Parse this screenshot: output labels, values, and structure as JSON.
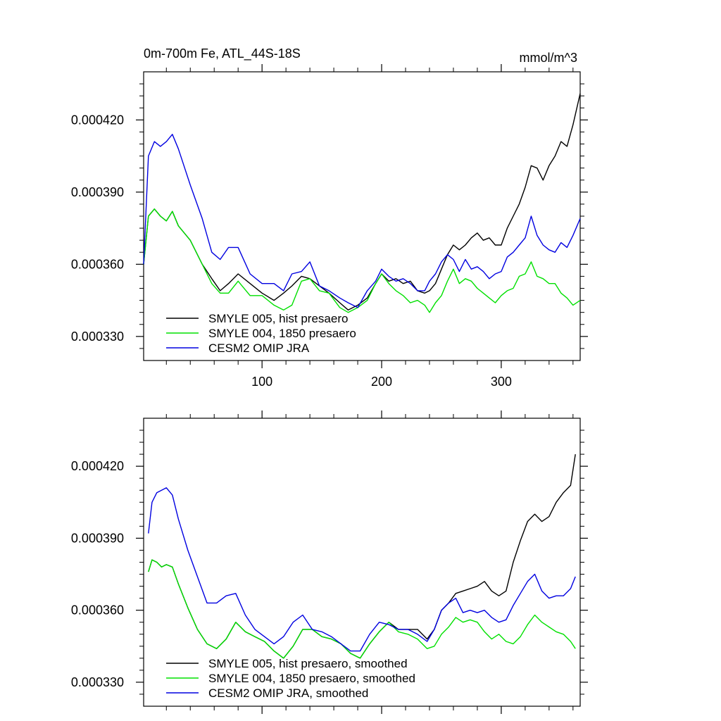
{
  "figure": {
    "title": "0m-700m Fe, ATL_44S-18S",
    "units": "mmol/m^3"
  },
  "chart_data": [
    {
      "type": "line",
      "panel": "top",
      "title": "0m-700m Fe, ATL_44S-18S",
      "ylabel_right": "mmol/m^3",
      "xlim": [
        1,
        366
      ],
      "ylim": [
        0.00032,
        0.00044
      ],
      "xticks": [
        100,
        200,
        300
      ],
      "xtick_labels": [
        "100",
        "200",
        "300"
      ],
      "yticks": [
        0.00033,
        0.00036,
        0.00039,
        0.00042
      ],
      "ytick_labels": [
        "0.000330",
        "0.000360",
        "0.000390",
        "0.000420"
      ],
      "legend_position": "bottom-left",
      "series": [
        {
          "name": "SMYLE 005, hist presaero",
          "color": "#000000",
          "x": [
            1,
            5,
            10,
            15,
            20,
            25,
            30,
            40,
            50,
            58,
            65,
            72,
            80,
            90,
            100,
            110,
            118,
            125,
            133,
            140,
            148,
            156,
            165,
            172,
            180,
            188,
            195,
            200,
            206,
            212,
            218,
            224,
            230,
            236,
            240,
            245,
            250,
            255,
            260,
            265,
            270,
            275,
            280,
            285,
            290,
            295,
            300,
            305,
            310,
            315,
            320,
            325,
            330,
            335,
            340,
            345,
            350,
            355,
            360,
            366
          ],
          "y": [
            0.00036,
            0.00038,
            0.000383,
            0.00038,
            0.000378,
            0.000382,
            0.000376,
            0.00037,
            0.00036,
            0.000354,
            0.000349,
            0.000352,
            0.000356,
            0.000352,
            0.000348,
            0.000345,
            0.000348,
            0.000351,
            0.000355,
            0.000354,
            0.000351,
            0.000348,
            0.000344,
            0.000341,
            0.000343,
            0.000346,
            0.000352,
            0.000356,
            0.000353,
            0.000354,
            0.000352,
            0.000353,
            0.000349,
            0.000348,
            0.000349,
            0.000352,
            0.000358,
            0.000364,
            0.000368,
            0.000366,
            0.000368,
            0.000371,
            0.000373,
            0.00037,
            0.000371,
            0.000368,
            0.000368,
            0.000375,
            0.00038,
            0.000385,
            0.000392,
            0.000401,
            0.0004,
            0.000395,
            0.000401,
            0.000405,
            0.000411,
            0.000409,
            0.000418,
            0.000431
          ]
        },
        {
          "name": "SMYLE 004, 1850 presaero",
          "color": "#00e000",
          "x": [
            1,
            5,
            10,
            15,
            20,
            25,
            30,
            40,
            50,
            58,
            65,
            72,
            80,
            90,
            100,
            110,
            118,
            125,
            133,
            140,
            148,
            156,
            165,
            172,
            180,
            188,
            195,
            200,
            206,
            212,
            218,
            224,
            230,
            236,
            240,
            245,
            250,
            255,
            260,
            265,
            270,
            275,
            280,
            285,
            290,
            295,
            300,
            305,
            310,
            315,
            320,
            325,
            330,
            335,
            340,
            345,
            350,
            355,
            360,
            366
          ],
          "y": [
            0.00036,
            0.00038,
            0.000383,
            0.00038,
            0.000378,
            0.000382,
            0.000376,
            0.00037,
            0.00036,
            0.000352,
            0.000348,
            0.000348,
            0.000353,
            0.000347,
            0.000347,
            0.000343,
            0.000341,
            0.000343,
            0.000353,
            0.000354,
            0.000349,
            0.000348,
            0.000342,
            0.00034,
            0.000342,
            0.000345,
            0.000352,
            0.000356,
            0.000352,
            0.000349,
            0.000347,
            0.000344,
            0.000345,
            0.000343,
            0.00034,
            0.000344,
            0.000347,
            0.000353,
            0.000358,
            0.000352,
            0.000354,
            0.000353,
            0.00035,
            0.000348,
            0.000346,
            0.000344,
            0.000347,
            0.000349,
            0.00035,
            0.000355,
            0.000356,
            0.000361,
            0.000355,
            0.000354,
            0.000352,
            0.000352,
            0.000348,
            0.000346,
            0.000343,
            0.000345
          ]
        },
        {
          "name": "CESM2 OMIP JRA",
          "color": "#0000e0",
          "x": [
            1,
            5,
            10,
            15,
            20,
            25,
            30,
            40,
            50,
            58,
            65,
            72,
            80,
            90,
            100,
            110,
            118,
            125,
            133,
            140,
            148,
            156,
            165,
            172,
            180,
            188,
            195,
            200,
            206,
            212,
            218,
            224,
            230,
            236,
            240,
            245,
            250,
            255,
            260,
            265,
            270,
            275,
            280,
            285,
            290,
            295,
            300,
            305,
            310,
            315,
            320,
            325,
            330,
            335,
            340,
            345,
            350,
            355,
            360,
            366
          ],
          "y": [
            0.00036,
            0.000405,
            0.000411,
            0.000409,
            0.000411,
            0.000414,
            0.000408,
            0.000393,
            0.000379,
            0.000365,
            0.000362,
            0.000367,
            0.000367,
            0.000356,
            0.000352,
            0.000352,
            0.000349,
            0.000356,
            0.000357,
            0.000361,
            0.000351,
            0.000349,
            0.000346,
            0.000344,
            0.000342,
            0.000349,
            0.000353,
            0.000358,
            0.000355,
            0.000353,
            0.000354,
            0.000352,
            0.000349,
            0.000349,
            0.000353,
            0.000356,
            0.000361,
            0.000364,
            0.000362,
            0.000357,
            0.000362,
            0.000358,
            0.000359,
            0.000357,
            0.000354,
            0.000356,
            0.000357,
            0.000363,
            0.000365,
            0.000368,
            0.000371,
            0.00038,
            0.000372,
            0.000368,
            0.000366,
            0.000365,
            0.000369,
            0.000367,
            0.000372,
            0.000379
          ]
        }
      ]
    },
    {
      "type": "line",
      "panel": "bottom",
      "xlim": [
        1,
        366
      ],
      "ylim": [
        0.00032,
        0.00044
      ],
      "xticks": [
        100,
        200,
        300
      ],
      "yticks": [
        0.00033,
        0.00036,
        0.00039,
        0.00042
      ],
      "ytick_labels": [
        "0.000330",
        "0.000360",
        "0.000390",
        "0.000420"
      ],
      "legend_position": "bottom-left",
      "series": [
        {
          "name": "SMYLE 005, hist presaero, smoothed",
          "color": "#000000",
          "x": [
            5,
            8,
            12,
            16,
            20,
            25,
            30,
            38,
            46,
            54,
            62,
            70,
            78,
            86,
            94,
            102,
            110,
            118,
            126,
            134,
            142,
            150,
            158,
            166,
            174,
            182,
            190,
            198,
            206,
            214,
            222,
            230,
            238,
            244,
            250,
            256,
            262,
            268,
            274,
            280,
            286,
            292,
            298,
            304,
            310,
            316,
            322,
            328,
            334,
            340,
            346,
            352,
            358,
            362
          ],
          "y": [
            0.000376,
            0.000381,
            0.00038,
            0.000378,
            0.000379,
            0.000378,
            0.000371,
            0.000361,
            0.000352,
            0.000346,
            0.000344,
            0.000348,
            0.000355,
            0.000351,
            0.000349,
            0.000347,
            0.000343,
            0.00034,
            0.000345,
            0.000352,
            0.000352,
            0.000349,
            0.000348,
            0.000346,
            0.000342,
            0.00034,
            0.000346,
            0.000351,
            0.000355,
            0.000352,
            0.000352,
            0.000352,
            0.000348,
            0.000352,
            0.00036,
            0.000363,
            0.000367,
            0.000368,
            0.000369,
            0.00037,
            0.000372,
            0.000368,
            0.000366,
            0.000368,
            0.00038,
            0.000389,
            0.000397,
            0.0004,
            0.000397,
            0.000399,
            0.000405,
            0.000409,
            0.000412,
            0.000425
          ]
        },
        {
          "name": "SMYLE 004, 1850 presaero, smoothed",
          "color": "#00e000",
          "x": [
            5,
            8,
            12,
            16,
            20,
            25,
            30,
            38,
            46,
            54,
            62,
            70,
            78,
            86,
            94,
            102,
            110,
            118,
            126,
            134,
            142,
            150,
            158,
            166,
            174,
            182,
            190,
            198,
            206,
            214,
            222,
            230,
            238,
            244,
            250,
            256,
            262,
            268,
            274,
            280,
            286,
            292,
            298,
            304,
            310,
            316,
            322,
            328,
            334,
            340,
            346,
            352,
            358,
            362
          ],
          "y": [
            0.000376,
            0.000381,
            0.00038,
            0.000378,
            0.000379,
            0.000378,
            0.000371,
            0.000361,
            0.000352,
            0.000346,
            0.000344,
            0.000348,
            0.000355,
            0.000351,
            0.000349,
            0.000347,
            0.000343,
            0.00034,
            0.000345,
            0.000352,
            0.000352,
            0.000349,
            0.000348,
            0.000346,
            0.000342,
            0.00034,
            0.000346,
            0.000351,
            0.000355,
            0.000351,
            0.00035,
            0.000348,
            0.000344,
            0.000345,
            0.00035,
            0.000353,
            0.000357,
            0.000355,
            0.000356,
            0.000355,
            0.000351,
            0.000348,
            0.00035,
            0.000347,
            0.000346,
            0.000349,
            0.000354,
            0.000358,
            0.000355,
            0.000353,
            0.000351,
            0.00035,
            0.000347,
            0.000344
          ]
        },
        {
          "name": "CESM2 OMIP JRA, smoothed",
          "color": "#0000e0",
          "x": [
            5,
            8,
            12,
            16,
            20,
            25,
            30,
            38,
            46,
            54,
            62,
            70,
            78,
            86,
            94,
            102,
            110,
            118,
            126,
            134,
            142,
            150,
            158,
            166,
            174,
            182,
            190,
            198,
            206,
            214,
            222,
            230,
            238,
            244,
            250,
            256,
            262,
            268,
            274,
            280,
            286,
            292,
            298,
            304,
            310,
            316,
            322,
            328,
            334,
            340,
            346,
            352,
            358,
            362
          ],
          "y": [
            0.000392,
            0.000405,
            0.000409,
            0.00041,
            0.000411,
            0.000408,
            0.000398,
            0.000385,
            0.000374,
            0.000363,
            0.000363,
            0.000366,
            0.000367,
            0.000358,
            0.000352,
            0.000349,
            0.000346,
            0.000349,
            0.000355,
            0.000358,
            0.000352,
            0.000351,
            0.000349,
            0.000346,
            0.000343,
            0.000343,
            0.00035,
            0.000355,
            0.000354,
            0.000352,
            0.000352,
            0.00035,
            0.000347,
            0.000352,
            0.00036,
            0.000363,
            0.000365,
            0.000359,
            0.00036,
            0.000359,
            0.00036,
            0.000357,
            0.000355,
            0.000356,
            0.000362,
            0.000367,
            0.000372,
            0.000375,
            0.000368,
            0.000365,
            0.000366,
            0.000366,
            0.000369,
            0.000374
          ]
        }
      ]
    }
  ]
}
